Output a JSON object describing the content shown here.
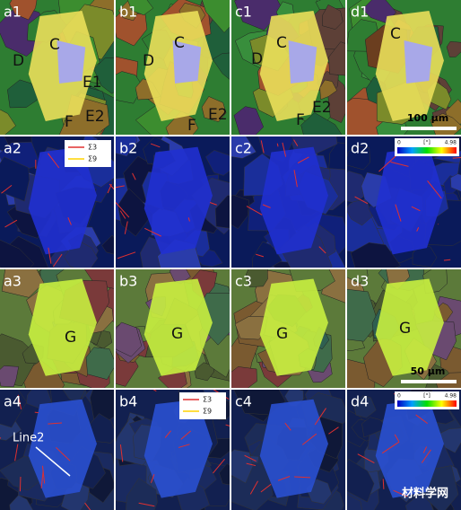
{
  "panels": [
    {
      "label": "a1",
      "annotations": [
        "D",
        "C",
        "E1",
        "E2",
        "F"
      ]
    },
    {
      "label": "b1",
      "annotations": [
        "D",
        "C",
        "E2",
        "F"
      ]
    },
    {
      "label": "c1",
      "annotations": [
        "D",
        "C",
        "F",
        "E2"
      ]
    },
    {
      "label": "d1",
      "annotations": [
        "C"
      ]
    },
    {
      "label": "a2",
      "annotations": []
    },
    {
      "label": "b2",
      "annotations": []
    },
    {
      "label": "c2",
      "annotations": []
    },
    {
      "label": "d2",
      "annotations": []
    },
    {
      "label": "a3",
      "annotations": [
        "G"
      ]
    },
    {
      "label": "b3",
      "annotations": [
        "G"
      ]
    },
    {
      "label": "c3",
      "annotations": [
        "G"
      ]
    },
    {
      "label": "d3",
      "annotations": [
        "G"
      ]
    },
    {
      "label": "a4",
      "annotations": [
        "Line2"
      ]
    },
    {
      "label": "b4",
      "annotations": []
    },
    {
      "label": "c4",
      "annotations": []
    },
    {
      "label": "d4",
      "annotations": []
    }
  ],
  "scale_bars": {
    "d1": "100 μm",
    "d3": "50 μm"
  },
  "boundary_legend_a2": [
    "Σ3",
    "Σ9"
  ],
  "boundary_legend_b4": [
    "Σ3",
    "Σ9"
  ],
  "colorbar_d2": {
    "min": 0,
    "unit": "[°]",
    "max": 4.98
  },
  "colorbar_d4": {
    "min": 0,
    "unit": "[°]",
    "max": 4.98
  },
  "watermark": "材料学网"
}
